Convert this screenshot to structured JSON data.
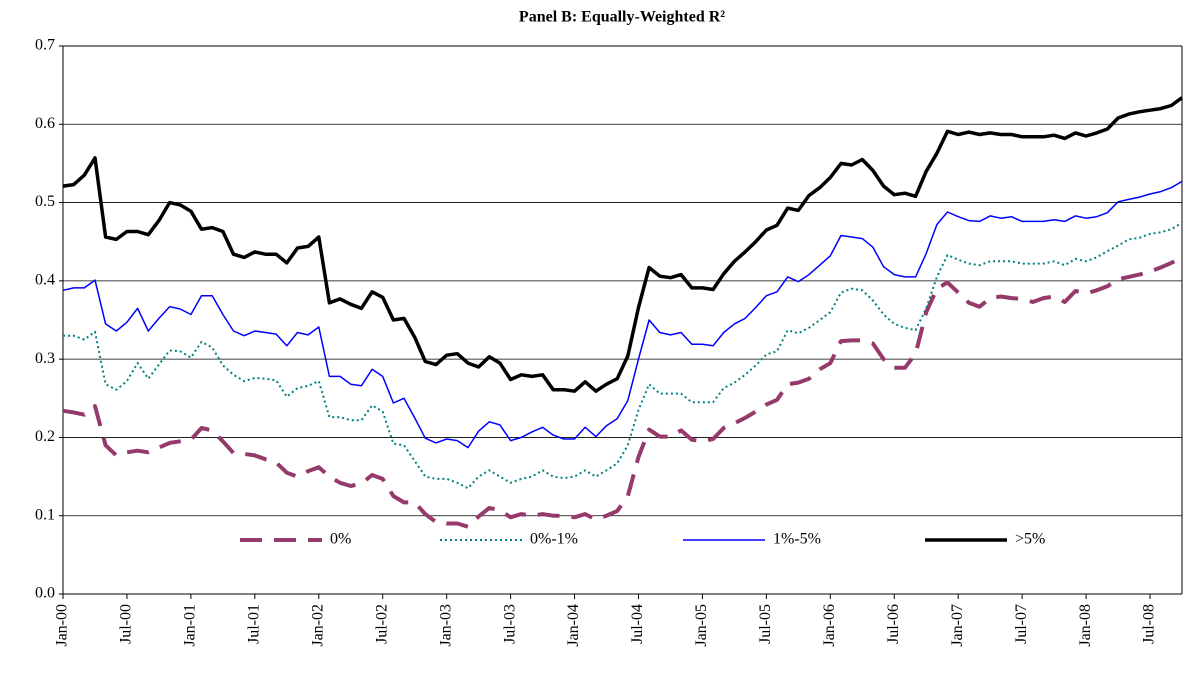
{
  "chart_data": {
    "type": "line",
    "title": "Panel B: Equally-Weighted R²",
    "categories": [
      "Jan-00",
      null,
      null,
      null,
      null,
      null,
      "Jul-00",
      null,
      null,
      null,
      null,
      null,
      "Jan-01",
      null,
      null,
      null,
      null,
      null,
      "Jul-01",
      null,
      null,
      null,
      null,
      null,
      "Jan-02",
      null,
      null,
      null,
      null,
      null,
      "Jul-02",
      null,
      null,
      null,
      null,
      null,
      "Jan-03",
      null,
      null,
      null,
      null,
      null,
      "Jul-03",
      null,
      null,
      null,
      null,
      null,
      "Jan-04",
      null,
      null,
      null,
      null,
      null,
      "Jul-04",
      null,
      null,
      null,
      null,
      null,
      "Jan-05",
      null,
      null,
      null,
      null,
      null,
      "Jul-05",
      null,
      null,
      null,
      null,
      null,
      "Jan-06",
      null,
      null,
      null,
      null,
      null,
      "Jul-06",
      null,
      null,
      null,
      null,
      null,
      "Jan-07",
      null,
      null,
      null,
      null,
      null,
      "Jul-07",
      null,
      null,
      null,
      null,
      null,
      "Jan-08",
      null,
      null,
      null,
      null,
      null,
      "Jul-08",
      null,
      null,
      null
    ],
    "series": [
      {
        "name": "0%",
        "color": "#953a6a",
        "dash": "long-dash",
        "width": 4,
        "values": [
          0.234,
          0.232,
          0.229,
          0.24,
          0.19,
          0.177,
          0.181,
          0.183,
          0.181,
          0.187,
          0.193,
          0.195,
          0.197,
          0.212,
          0.209,
          0.195,
          0.18,
          0.179,
          0.177,
          0.172,
          0.168,
          0.155,
          0.15,
          0.157,
          0.162,
          0.15,
          0.142,
          0.138,
          0.141,
          0.152,
          0.147,
          0.125,
          0.117,
          0.117,
          0.102,
          0.092,
          0.09,
          0.09,
          0.086,
          0.099,
          0.11,
          0.107,
          0.098,
          0.102,
          0.1,
          0.102,
          0.1,
          0.1,
          0.098,
          0.102,
          0.095,
          0.1,
          0.106,
          0.125,
          0.175,
          0.21,
          0.201,
          0.201,
          0.209,
          0.197,
          0.195,
          0.198,
          0.212,
          0.218,
          0.225,
          0.233,
          0.242,
          0.248,
          0.268,
          0.27,
          0.275,
          0.287,
          0.295,
          0.323,
          0.324,
          0.324,
          0.32,
          0.3,
          0.289,
          0.289,
          0.307,
          0.36,
          0.39,
          0.398,
          0.385,
          0.372,
          0.367,
          0.378,
          0.38,
          0.378,
          0.377,
          0.373,
          0.378,
          0.38,
          0.373,
          0.387,
          0.384,
          0.388,
          0.393,
          0.402,
          0.405,
          0.408,
          0.412,
          0.417,
          0.423,
          0.43
        ]
      },
      {
        "name": "0%-1%",
        "color": "#008080",
        "dash": "dotted",
        "width": 2,
        "values": [
          0.33,
          0.33,
          0.325,
          0.335,
          0.268,
          0.261,
          0.272,
          0.295,
          0.275,
          0.293,
          0.311,
          0.31,
          0.302,
          0.322,
          0.315,
          0.292,
          0.28,
          0.272,
          0.276,
          0.275,
          0.273,
          0.252,
          0.263,
          0.266,
          0.272,
          0.226,
          0.226,
          0.222,
          0.222,
          0.241,
          0.233,
          0.192,
          0.19,
          0.17,
          0.15,
          0.147,
          0.147,
          0.142,
          0.135,
          0.15,
          0.158,
          0.15,
          0.142,
          0.147,
          0.15,
          0.158,
          0.15,
          0.148,
          0.15,
          0.158,
          0.15,
          0.158,
          0.167,
          0.19,
          0.235,
          0.268,
          0.256,
          0.256,
          0.256,
          0.245,
          0.245,
          0.245,
          0.263,
          0.27,
          0.28,
          0.292,
          0.306,
          0.31,
          0.337,
          0.333,
          0.34,
          0.35,
          0.36,
          0.385,
          0.39,
          0.388,
          0.375,
          0.357,
          0.345,
          0.34,
          0.337,
          0.365,
          0.405,
          0.433,
          0.427,
          0.422,
          0.42,
          0.425,
          0.425,
          0.425,
          0.422,
          0.422,
          0.422,
          0.425,
          0.42,
          0.428,
          0.425,
          0.43,
          0.438,
          0.445,
          0.453,
          0.455,
          0.46,
          0.462,
          0.466,
          0.474
        ]
      },
      {
        "name": "1%-5%",
        "color": "#0000ff",
        "dash": "solid",
        "width": 1.5,
        "values": [
          0.388,
          0.391,
          0.391,
          0.401,
          0.345,
          0.336,
          0.347,
          0.365,
          0.336,
          0.352,
          0.367,
          0.364,
          0.357,
          0.381,
          0.381,
          0.357,
          0.336,
          0.33,
          0.336,
          0.334,
          0.332,
          0.317,
          0.334,
          0.331,
          0.341,
          0.278,
          0.278,
          0.268,
          0.266,
          0.287,
          0.278,
          0.244,
          0.25,
          0.225,
          0.199,
          0.193,
          0.198,
          0.196,
          0.187,
          0.208,
          0.22,
          0.216,
          0.196,
          0.2,
          0.207,
          0.213,
          0.203,
          0.198,
          0.198,
          0.213,
          0.201,
          0.215,
          0.224,
          0.247,
          0.3,
          0.35,
          0.334,
          0.331,
          0.334,
          0.319,
          0.319,
          0.317,
          0.334,
          0.345,
          0.352,
          0.366,
          0.381,
          0.386,
          0.405,
          0.399,
          0.408,
          0.42,
          0.432,
          0.458,
          0.456,
          0.454,
          0.443,
          0.418,
          0.408,
          0.405,
          0.405,
          0.435,
          0.472,
          0.488,
          0.482,
          0.477,
          0.476,
          0.483,
          0.48,
          0.482,
          0.476,
          0.476,
          0.476,
          0.478,
          0.476,
          0.483,
          0.48,
          0.482,
          0.487,
          0.501,
          0.504,
          0.507,
          0.511,
          0.514,
          0.519,
          0.527
        ]
      },
      {
        "name": ">5%",
        "color": "#000000",
        "dash": "solid",
        "width": 3.5,
        "values": [
          0.521,
          0.523,
          0.535,
          0.557,
          0.456,
          0.453,
          0.463,
          0.463,
          0.459,
          0.477,
          0.5,
          0.497,
          0.489,
          0.466,
          0.468,
          0.463,
          0.434,
          0.43,
          0.437,
          0.434,
          0.434,
          0.423,
          0.442,
          0.444,
          0.456,
          0.372,
          0.377,
          0.37,
          0.365,
          0.386,
          0.379,
          0.35,
          0.352,
          0.328,
          0.297,
          0.293,
          0.305,
          0.307,
          0.295,
          0.29,
          0.303,
          0.295,
          0.274,
          0.28,
          0.278,
          0.28,
          0.261,
          0.261,
          0.259,
          0.271,
          0.259,
          0.268,
          0.275,
          0.304,
          0.366,
          0.417,
          0.406,
          0.404,
          0.408,
          0.391,
          0.391,
          0.389,
          0.409,
          0.425,
          0.437,
          0.45,
          0.465,
          0.471,
          0.493,
          0.49,
          0.509,
          0.519,
          0.532,
          0.55,
          0.548,
          0.555,
          0.541,
          0.521,
          0.51,
          0.512,
          0.508,
          0.54,
          0.563,
          0.591,
          0.587,
          0.59,
          0.587,
          0.589,
          0.587,
          0.587,
          0.584,
          0.584,
          0.584,
          0.586,
          0.582,
          0.589,
          0.585,
          0.589,
          0.594,
          0.608,
          0.613,
          0.616,
          0.618,
          0.62,
          0.624,
          0.634
        ]
      }
    ],
    "ylim": [
      0,
      0.7
    ],
    "yticks": [
      {
        "value": 0,
        "label": "0.0"
      },
      0.1,
      0.2,
      0.3,
      0.4,
      0.5,
      0.6,
      0.7
    ],
    "grid": true,
    "legend": "bottom"
  }
}
